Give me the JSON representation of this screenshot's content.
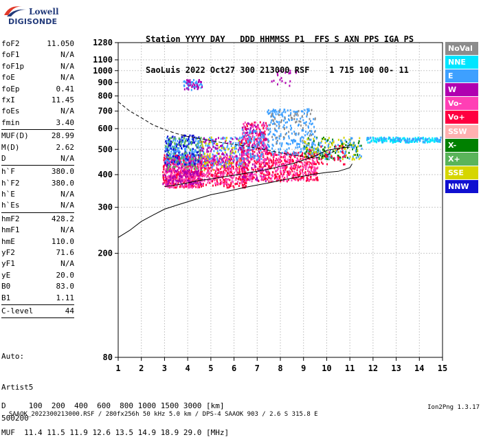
{
  "logo": {
    "line1": "Lowell",
    "line2": "DIGISONDE"
  },
  "header": {
    "labels": "Station YYYY DAY   DDD HHMMSS P1  FFS S AXN PPS IGA PS",
    "values": "SaoLuis 2022 Oct27 300 213000 RSF    1 715 100 00- 11"
  },
  "params": [
    {
      "k": "foF2",
      "v": "11.050"
    },
    {
      "k": "foF1",
      "v": "N/A"
    },
    {
      "k": "foF1p",
      "v": "N/A"
    },
    {
      "k": "foE",
      "v": "N/A"
    },
    {
      "k": "foEp",
      "v": "0.41"
    },
    {
      "k": "fxI",
      "v": "11.45"
    },
    {
      "k": "foEs",
      "v": "N/A"
    },
    {
      "k": "fmin",
      "v": "3.40"
    },
    {
      "sep": true
    },
    {
      "k": "MUF(D)",
      "v": "28.99"
    },
    {
      "k": "M(D)",
      "v": "2.62"
    },
    {
      "k": "D",
      "v": "N/A"
    },
    {
      "sep": true
    },
    {
      "k": "h`F",
      "v": "380.0"
    },
    {
      "k": "h`F2",
      "v": "380.0"
    },
    {
      "k": "h`E",
      "v": "N/A"
    },
    {
      "k": "h`Es",
      "v": "N/A"
    },
    {
      "sep": true
    },
    {
      "k": "hmF2",
      "v": "428.2"
    },
    {
      "k": "hmF1",
      "v": "N/A"
    },
    {
      "k": "hmE",
      "v": "110.0"
    },
    {
      "k": "yF2",
      "v": "71.6"
    },
    {
      "k": "yF1",
      "v": "N/A"
    },
    {
      "k": "yE",
      "v": "20.0"
    },
    {
      "k": "B0",
      "v": "83.0"
    },
    {
      "k": "B1",
      "v": "1.11"
    },
    {
      "sep": true
    },
    {
      "k": "C-level",
      "v": "44"
    },
    {
      "sep": true
    }
  ],
  "auto": {
    "l1": "Auto:",
    "l2": "Artist5",
    "l3": "500200"
  },
  "legend": [
    {
      "label": "NoVal",
      "color": "#8c8c8c"
    },
    {
      "label": "NNE",
      "color": "#00e5ff"
    },
    {
      "label": "E",
      "color": "#3ea0ff"
    },
    {
      "label": "W",
      "color": "#b000b0"
    },
    {
      "label": "Vo-",
      "color": "#ff3fb5"
    },
    {
      "label": "Vo+",
      "color": "#ff0040"
    },
    {
      "label": "SSW",
      "color": "#ffb0b0"
    },
    {
      "label": "X-",
      "color": "#008000"
    },
    {
      "label": "X+",
      "color": "#5ab45a"
    },
    {
      "label": "SSE",
      "color": "#d6d600"
    },
    {
      "label": "NNW",
      "color": "#1010d0"
    }
  ],
  "muf_table": {
    "d_line": "D     100  200  400  600  800 1000 1500 3000 [km]",
    "muf_line": "MUF  11.4 11.5 11.9 12.6 13.5 14.9 18.9 29.0 [MHz]"
  },
  "footer": {
    "left": "SAAOK_2022300213000.RSF / 280fx256h 50 kHz 5.0 km / DPS-4 SAAOK 903 / 2.6 S 315.8 E",
    "right": "Ion2Png 1.3.17"
  },
  "chart_data": {
    "type": "scatter",
    "xlim": [
      1,
      15
    ],
    "ylim": [
      80,
      1280
    ],
    "x_ticks": [
      1,
      2,
      3,
      4,
      5,
      6,
      7,
      8,
      9,
      10,
      11,
      12,
      13,
      14,
      15
    ],
    "y_ticks": [
      80,
      200,
      300,
      400,
      500,
      600,
      700,
      800,
      900,
      1000,
      1100,
      1280
    ],
    "y_scale": "log",
    "grid": true,
    "clusters": [
      {
        "x": [
          2.9,
          4.6
        ],
        "y": [
          360,
          480
        ],
        "color": "#ff0040",
        "n": 380
      },
      {
        "x": [
          3.0,
          4.6
        ],
        "y": [
          360,
          470
        ],
        "color": "#ff3fb5",
        "n": 260
      },
      {
        "x": [
          2.9,
          4.6
        ],
        "y": [
          370,
          480
        ],
        "color": "#b000b0",
        "n": 180
      },
      {
        "x": [
          3.0,
          4.6
        ],
        "y": [
          440,
          560
        ],
        "color": "#3ea0ff",
        "n": 200
      },
      {
        "x": [
          3.0,
          4.6
        ],
        "y": [
          440,
          570
        ],
        "color": "#1010d0",
        "n": 110
      },
      {
        "x": [
          3.0,
          4.6
        ],
        "y": [
          420,
          560
        ],
        "color": "#5ab45a",
        "n": 80
      },
      {
        "x": [
          4.5,
          6.5
        ],
        "y": [
          360,
          470
        ],
        "color": "#ff0040",
        "n": 260
      },
      {
        "x": [
          4.5,
          6.5
        ],
        "y": [
          370,
          480
        ],
        "color": "#ff3fb5",
        "n": 180
      },
      {
        "x": [
          4.5,
          6.4
        ],
        "y": [
          430,
          560
        ],
        "color": "#3ea0ff",
        "n": 140
      },
      {
        "x": [
          4.5,
          6.4
        ],
        "y": [
          430,
          560
        ],
        "color": "#b000b0",
        "n": 100
      },
      {
        "x": [
          4.5,
          6.4
        ],
        "y": [
          420,
          560
        ],
        "color": "#d6d600",
        "n": 60
      },
      {
        "x": [
          6.3,
          7.4
        ],
        "y": [
          380,
          640
        ],
        "color": "#ff0040",
        "n": 220
      },
      {
        "x": [
          6.3,
          7.4
        ],
        "y": [
          380,
          640
        ],
        "color": "#b000b0",
        "n": 120
      },
      {
        "x": [
          6.3,
          7.4
        ],
        "y": [
          380,
          640
        ],
        "color": "#ff3fb5",
        "n": 120
      },
      {
        "x": [
          6.3,
          7.3
        ],
        "y": [
          460,
          600
        ],
        "color": "#3ea0ff",
        "n": 70
      },
      {
        "x": [
          7.4,
          9.6
        ],
        "y": [
          380,
          490
        ],
        "color": "#ff0040",
        "n": 300
      },
      {
        "x": [
          7.4,
          9.6
        ],
        "y": [
          380,
          490
        ],
        "color": "#ff3fb5",
        "n": 160
      },
      {
        "x": [
          7.4,
          9.5
        ],
        "y": [
          480,
          720
        ],
        "color": "#3ea0ff",
        "n": 240
      },
      {
        "x": [
          7.4,
          9.5
        ],
        "y": [
          520,
          720
        ],
        "color": "#8c8c8c",
        "n": 60
      },
      {
        "x": [
          9.0,
          11.5
        ],
        "y": [
          460,
          560
        ],
        "color": "#008000",
        "n": 100
      },
      {
        "x": [
          9.0,
          11.5
        ],
        "y": [
          460,
          560
        ],
        "color": "#d6d600",
        "n": 80
      },
      {
        "x": [
          9.0,
          11.5
        ],
        "y": [
          460,
          560
        ],
        "color": "#3ea0ff",
        "n": 80
      },
      {
        "x": [
          9.2,
          10.8
        ],
        "y": [
          440,
          520
        ],
        "color": "#ff0040",
        "n": 40
      },
      {
        "x": [
          11.7,
          14.9
        ],
        "y": [
          535,
          560
        ],
        "color": "#00e5ff",
        "n": 150
      },
      {
        "x": [
          11.7,
          14.9
        ],
        "y": [
          535,
          560
        ],
        "color": "#3ea0ff",
        "n": 60
      },
      {
        "x": [
          3.8,
          4.6
        ],
        "y": [
          850,
          930
        ],
        "color": "#3ea0ff",
        "n": 40
      },
      {
        "x": [
          3.8,
          4.6
        ],
        "y": [
          850,
          930
        ],
        "color": "#b000b0",
        "n": 30
      },
      {
        "x": [
          7.6,
          8.8
        ],
        "y": [
          880,
          1010
        ],
        "color": "#b000b0",
        "n": 20
      }
    ],
    "traces": [
      {
        "name": "dashed",
        "style": "dashed",
        "x": [
          1.0,
          1.5,
          2.0,
          2.5,
          3.0,
          3.5,
          4.0,
          4.5,
          5.0,
          5.5,
          6.0,
          6.5,
          7.0,
          7.5,
          8.0,
          8.5,
          9.0,
          9.5,
          10.0,
          10.5,
          11.0
        ],
        "y": [
          760,
          700,
          660,
          620,
          595,
          575,
          560,
          550,
          540,
          530,
          522,
          515,
          505,
          495,
          485,
          475,
          470,
          462,
          475,
          500,
          520
        ]
      },
      {
        "name": "solid-upper",
        "style": "solid",
        "x": [
          3.0,
          3.5,
          4.0,
          4.5,
          5.0,
          5.5,
          6.0,
          6.5,
          7.0,
          7.5,
          8.0,
          8.5,
          9.0,
          9.5,
          10.0,
          10.5,
          11.0
        ],
        "y": [
          360,
          365,
          372,
          380,
          385,
          392,
          398,
          405,
          412,
          420,
          430,
          440,
          455,
          472,
          495,
          505,
          510
        ]
      },
      {
        "name": "solid-lower",
        "style": "solid",
        "x": [
          1.0,
          1.5,
          2.0,
          2.5,
          3.0,
          3.5,
          4.0,
          4.5,
          5.0,
          5.5,
          6.0,
          6.5,
          7.0,
          7.5,
          8.0,
          8.5,
          9.0,
          9.5,
          10.0,
          10.5,
          11.0,
          11.1
        ],
        "y": [
          230,
          245,
          265,
          280,
          295,
          305,
          315,
          325,
          335,
          342,
          350,
          358,
          365,
          372,
          380,
          388,
          395,
          402,
          408,
          412,
          425,
          440
        ]
      }
    ]
  }
}
